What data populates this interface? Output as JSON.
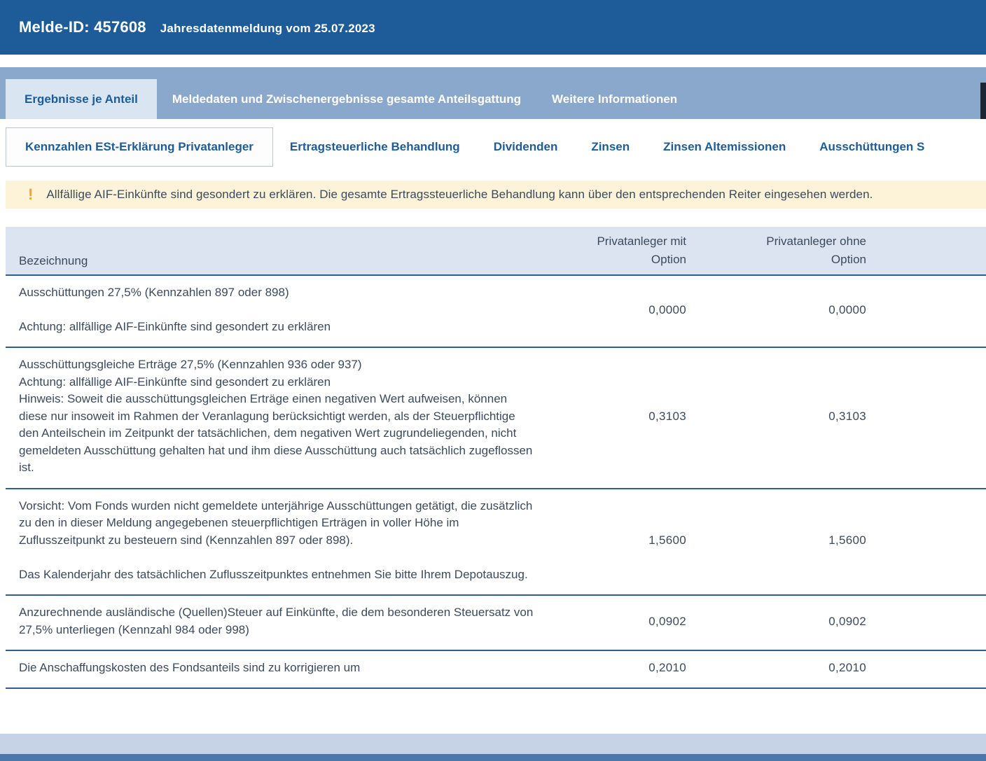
{
  "header": {
    "melde_id": "Melde-ID: 457608",
    "subtitle": "Jahresdatenmeldung vom 25.07.2023"
  },
  "main_tabs": [
    {
      "label": "Ergebnisse je Anteil",
      "active": true
    },
    {
      "label": "Meldedaten und Zwischenergebnisse gesamte Anteilsgattung",
      "active": false
    },
    {
      "label": "Weitere Informationen",
      "active": false
    }
  ],
  "sub_tabs": [
    {
      "label": "Kennzahlen ESt-Erklärung Privatanleger",
      "active": true
    },
    {
      "label": "Ertragsteuerliche Behandlung",
      "active": false
    },
    {
      "label": "Dividenden",
      "active": false
    },
    {
      "label": "Zinsen",
      "active": false
    },
    {
      "label": "Zinsen Altemissionen",
      "active": false
    },
    {
      "label": "Ausschüttungen S",
      "active": false
    }
  ],
  "warning": {
    "icon": "!",
    "text": "Allfällige AIF-Einkünfte sind gesondert zu erklären. Die gesamte Ertragssteuerliche Behandlung kann über den entsprechenden Reiter eingesehen werden."
  },
  "table": {
    "columns": [
      "Bezeichnung",
      "Privatanleger mit\nOption",
      "Privatanleger ohne\nOption"
    ],
    "rows": [
      {
        "label": "Ausschüttungen 27,5% (Kennzahlen 897 oder 898)\n\nAchtung: allfällige AIF-Einkünfte sind gesondert zu erklären",
        "with_option": "0,0000",
        "without_option": "0,0000"
      },
      {
        "label": "Ausschüttungsgleiche Erträge 27,5% (Kennzahlen 936 oder 937)\nAchtung: allfällige AIF-Einkünfte sind gesondert zu erklären\nHinweis: Soweit die ausschüttungsgleichen Erträge einen negativen Wert aufweisen, können diese nur insoweit im Rahmen der Veranlagung berücksichtigt werden, als der Steuerpflichtige den Anteilschein im Zeitpunkt der tatsächlichen, dem negativen Wert zugrundeliegenden, nicht gemeldeten Ausschüttung gehalten hat und ihm diese Ausschüttung auch tatsächlich zugeflossen ist.",
        "with_option": "0,3103",
        "without_option": "0,3103"
      },
      {
        "label": "Vorsicht: Vom Fonds wurden nicht gemeldete unterjährige Ausschüttungen getätigt, die zusätzlich zu den in dieser Meldung angegebenen steuerpflichtigen Erträgen in voller Höhe im Zuflusszeitpunkt zu besteuern sind (Kennzahlen 897 oder 898).\n\nDas Kalenderjahr des tatsächlichen Zuflusszeitpunktes entnehmen Sie bitte Ihrem Depotauszug.",
        "with_option": "1,5600",
        "without_option": "1,5600"
      },
      {
        "label": "Anzurechnende ausländische (Quellen)Steuer auf Einkünfte, die dem besonderen Steuersatz von 27,5% unterliegen (Kennzahl 984 oder 998)",
        "with_option": "0,0902",
        "without_option": "0,0902"
      },
      {
        "label": "Die Anschaffungskosten des Fondsanteils sind zu korrigieren um",
        "with_option": "0,2010",
        "without_option": "0,2010"
      }
    ]
  },
  "colors": {
    "header_bg": "#1d5c98",
    "tabbar_bg": "#8aa8cb",
    "active_tab_bg": "#d9e5f1",
    "accent_text": "#1d5c98",
    "warning_bg": "#fcf3d8",
    "warning_icon": "#e8a33d",
    "table_header_bg": "#dbe4f0",
    "row_divider": "#2e5f94",
    "body_text": "#3c4a5d",
    "footer_band": "#c6d3e6",
    "footer_strip": "#4d77a9"
  }
}
